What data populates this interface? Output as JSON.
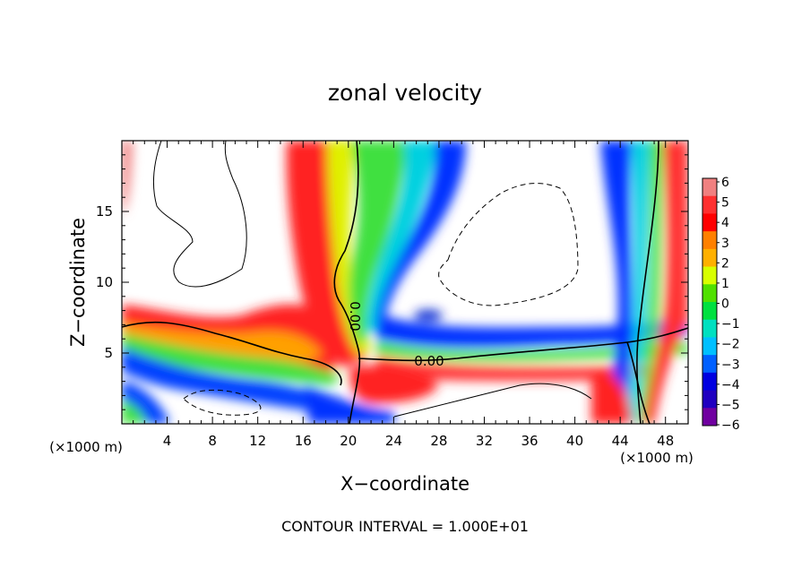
{
  "chart_data": {
    "type": "heatmap",
    "title": "zonal velocity",
    "xlabel": "X−coordinate",
    "ylabel": "Z−coordinate",
    "x_unit_label": "(×1000 m)",
    "y_unit_label": "(×1000 m)",
    "xlim": [
      0,
      50
    ],
    "ylim": [
      0,
      20
    ],
    "x_ticks": [
      4,
      8,
      12,
      16,
      20,
      24,
      28,
      32,
      36,
      40,
      44,
      48
    ],
    "y_ticks": [
      5,
      10,
      15
    ],
    "colorbar": {
      "levels": [
        6,
        5,
        4,
        3,
        2,
        1,
        0,
        -1,
        -2,
        -3,
        -4,
        -5,
        -6
      ],
      "labels": [
        "6",
        "5",
        "4",
        "3",
        "2",
        "1",
        "0",
        "−1",
        "−2",
        "−3",
        "−4",
        "−5",
        "−6"
      ],
      "colors": [
        "#f08080",
        "#ff3030",
        "#ff0000",
        "#ff8000",
        "#ffb000",
        "#d8ff00",
        "#50e000",
        "#00e040",
        "#00e0c0",
        "#00c0ff",
        "#0060ff",
        "#0000e0",
        "#2000c0",
        "#7000a0"
      ]
    },
    "contour_labels": [
      "0.00",
      "0.00"
    ],
    "footer": "CONTOUR INTERVAL = 1.000E+01"
  }
}
